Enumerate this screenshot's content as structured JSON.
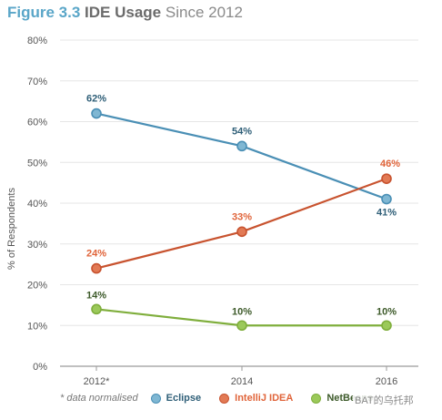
{
  "title": {
    "figure": "Figure 3.3",
    "name": "IDE Usage",
    "subtitle": "Since 2012"
  },
  "note": "* data normalised",
  "watermark": "BAT的乌托邦",
  "chart_data": {
    "type": "line",
    "categories": [
      "2012*",
      "2014",
      "2016"
    ],
    "ylabel": "% of Respondents",
    "ylim": [
      0,
      80
    ],
    "yticks": [
      0,
      10,
      20,
      30,
      40,
      50,
      60,
      70,
      80
    ],
    "ytick_labels": [
      "0%",
      "10%",
      "20%",
      "30%",
      "40%",
      "50%",
      "60%",
      "70%",
      "80%"
    ],
    "grid": true,
    "legend_position": "bottom",
    "series": [
      {
        "name": "Eclipse",
        "values": [
          62,
          54,
          41
        ],
        "labels": [
          "62%",
          "54%",
          "41%"
        ],
        "color": "#4a8fb5",
        "fill": "#7fb7d3",
        "label_color": "#2f5f78"
      },
      {
        "name": "IntelliJ IDEA",
        "values": [
          24,
          33,
          46
        ],
        "labels": [
          "24%",
          "33%",
          "46%"
        ],
        "color": "#c8532f",
        "fill": "#e27a55",
        "label_color": "#e0643a"
      },
      {
        "name": "NetBeans",
        "values": [
          14,
          10,
          10
        ],
        "labels": [
          "14%",
          "10%",
          "10%"
        ],
        "color": "#7fae3c",
        "fill": "#9bc95a",
        "label_color": "#3d5a2a"
      }
    ]
  }
}
